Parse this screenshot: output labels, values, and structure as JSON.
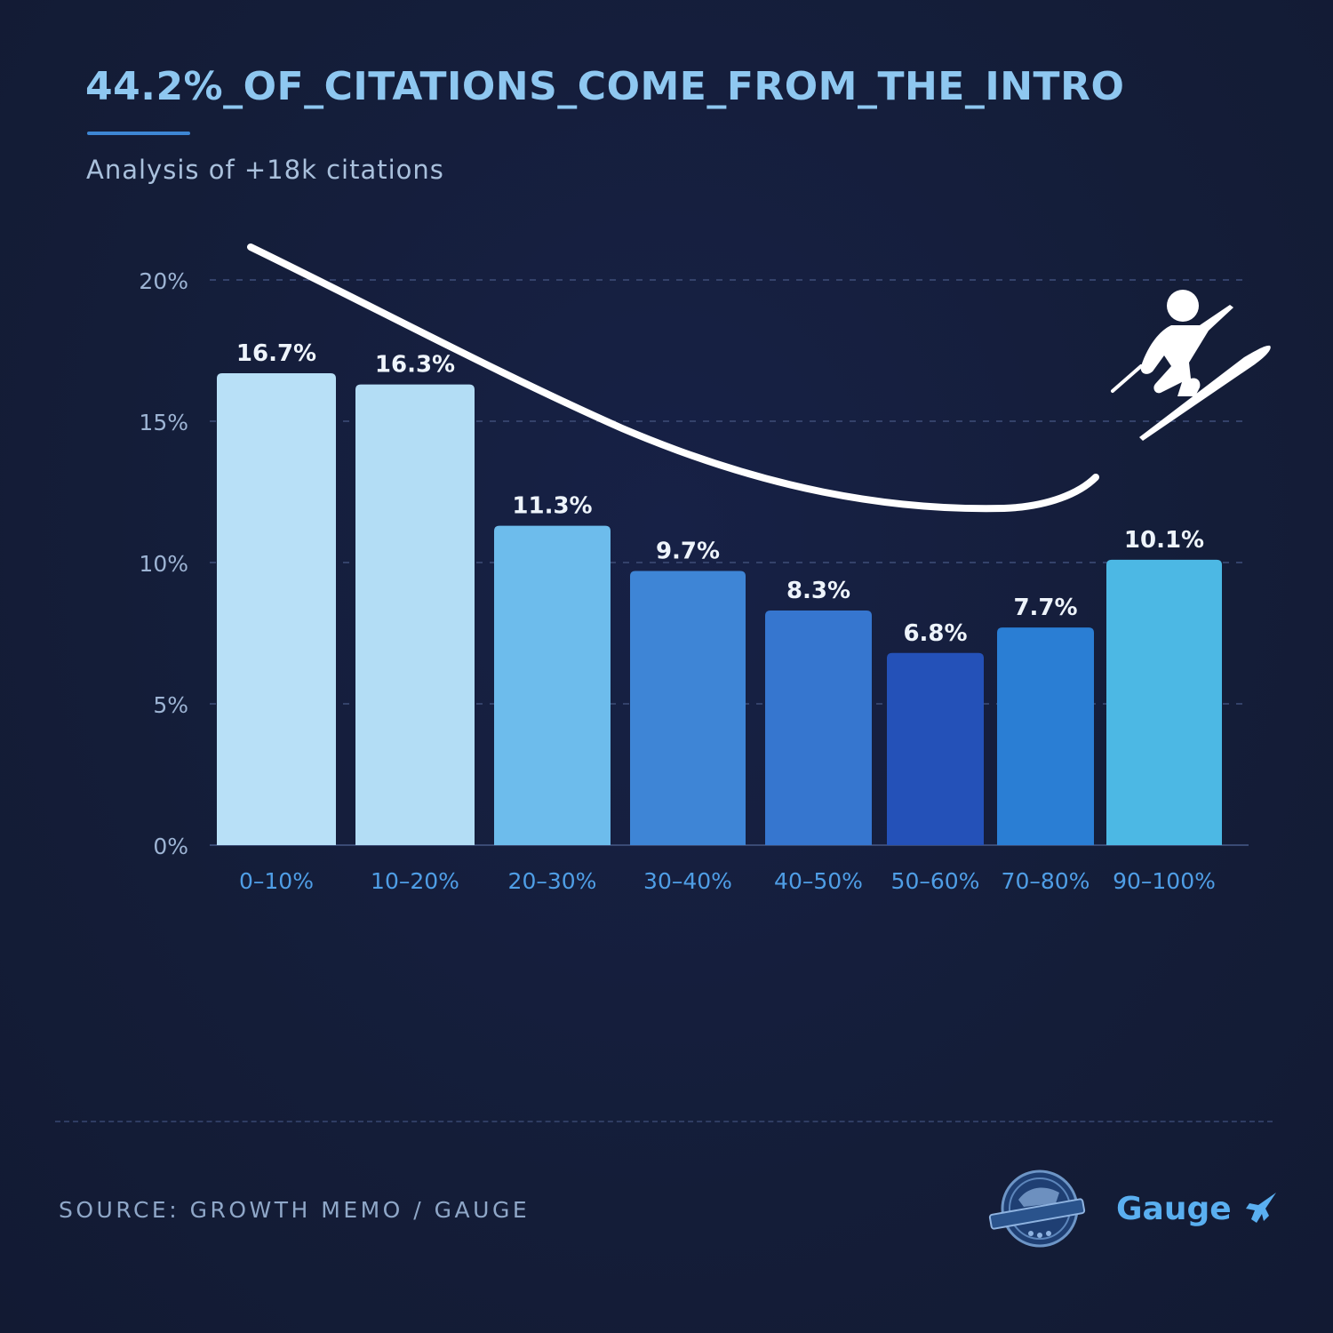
{
  "header": {
    "title": "44.2%_OF_CITATIONS_COME_FROM_THE_INTRO",
    "subtitle": "Analysis of +18k citations"
  },
  "chart_data": {
    "type": "bar",
    "categories": [
      "0–10%",
      "10–20%",
      "20–30%",
      "30–40%",
      "40–50%",
      "50–60%",
      "70–80%",
      "90–100%"
    ],
    "values": [
      16.7,
      16.3,
      11.3,
      9.7,
      8.3,
      6.8,
      7.7,
      10.1
    ],
    "value_labels": [
      "16.7%",
      "16.3%",
      "11.3%",
      "9.7%",
      "8.3%",
      "6.8%",
      "7.7%",
      "10.1%"
    ],
    "bar_colors": [
      "#b8e0f7",
      "#b3ddf5",
      "#6dbcec",
      "#3e85d6",
      "#3676cf",
      "#2451b8",
      "#2a7ed4",
      "#4cb8e4"
    ],
    "yticks": [
      0,
      5,
      10,
      15,
      20
    ],
    "ytick_labels": [
      "0%",
      "5%",
      "10%",
      "15%",
      "20%"
    ],
    "ylim": [
      0,
      20
    ],
    "xlabel": "",
    "ylabel": "",
    "grid": "dashed horizontal",
    "legend": "none",
    "annotation_icon": "snowboarder-icon"
  },
  "footer": {
    "source": "SOURCE: GROWTH MEMO / GAUGE",
    "brand": "Gauge",
    "brand_icon": "rocket-icon",
    "seal_icon": "badge-seal-icon"
  },
  "colors": {
    "background": "#141d38",
    "title": "#8ec7f0",
    "axis_label": "#4f9ee6",
    "tick_label": "#9db4d4",
    "value_label": "#eef4fb",
    "grid": "#34426a",
    "brand": "#5aaff0"
  }
}
